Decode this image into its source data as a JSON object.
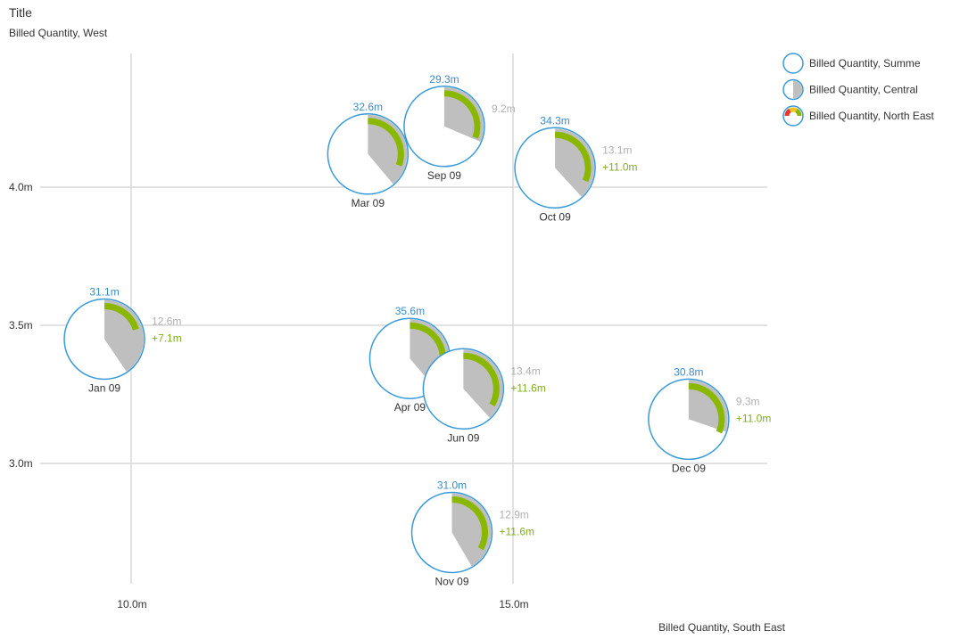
{
  "chart_data": {
    "type": "scatter",
    "title": "Title",
    "subtitle": "Billed Quantity, West",
    "xlabel": "Billed Quantity, South East",
    "ylabel": "Billed Quantity, West",
    "xlim": [
      8.7,
      18.4
    ],
    "ylim": [
      2.55,
      4.5
    ],
    "x_ticks": [
      {
        "value": 10,
        "label": "10.0m"
      },
      {
        "value": 15,
        "label": "15.0m"
      }
    ],
    "y_ticks": [
      {
        "value": 3.0,
        "label": "3.0m"
      },
      {
        "value": 3.5,
        "label": "3.5m"
      },
      {
        "value": 4.0,
        "label": "4.0m"
      }
    ],
    "grid": true,
    "legend_position": "top-right",
    "legend": [
      {
        "label": "Billed Quantity, Summe",
        "icon": "circle-outline-icon"
      },
      {
        "label": "Billed Quantity, Central",
        "icon": "grey-half-circle-icon"
      },
      {
        "label": "Billed Quantity, North East",
        "icon": "red-yellow-green-gauge-icon"
      }
    ],
    "colors": {
      "summe": "#3a9ad9",
      "central": "#bfbfbf",
      "north_east": "#8ab800",
      "summe_label": "#3a8cc8",
      "central_label": "#b0b0b0",
      "ne_label": "#7fae1c"
    },
    "points": [
      {
        "category": "Jan 09",
        "x": 9.65,
        "y": 3.45,
        "summe": 31.1,
        "summe_label": "31.1m",
        "central": 12.6,
        "central_label": "12.6m",
        "north_east": 7.1,
        "ne_label": "+7.1m"
      },
      {
        "category": "Mar 09",
        "x": 13.1,
        "y": 4.12,
        "summe": 32.6,
        "summe_label": "32.6m",
        "central": null,
        "central_label": "",
        "north_east": null,
        "ne_label": ""
      },
      {
        "category": "Sep 09",
        "x": 14.1,
        "y": 4.22,
        "summe": 29.3,
        "summe_label": "29.3m",
        "central": 9.2,
        "central_label": "9.2m",
        "north_east": null,
        "ne_label": ""
      },
      {
        "category": "Oct 09",
        "x": 15.55,
        "y": 4.07,
        "summe": 34.3,
        "summe_label": "34.3m",
        "central": 13.1,
        "central_label": "13.1m",
        "north_east": 11.0,
        "ne_label": "+11.0m"
      },
      {
        "category": "Apr 09",
        "x": 13.65,
        "y": 3.38,
        "summe": 35.6,
        "summe_label": "35.6m",
        "central": null,
        "central_label": "",
        "north_east": null,
        "ne_label": ""
      },
      {
        "category": "Jun 09",
        "x": 14.35,
        "y": 3.27,
        "summe": null,
        "summe_label": "",
        "central": 13.4,
        "central_label": "13.4m",
        "north_east": 11.6,
        "ne_label": "+11.6m"
      },
      {
        "category": "Nov 09",
        "x": 14.2,
        "y": 2.75,
        "summe": 31.0,
        "summe_label": "31.0m",
        "central": 12.9,
        "central_label": "12.9m",
        "north_east": 11.6,
        "ne_label": "+11.6m"
      },
      {
        "category": "Dec 09",
        "x": 17.3,
        "y": 3.16,
        "summe": 30.8,
        "summe_label": "30.8m",
        "central": 9.3,
        "central_label": "9.3m",
        "north_east": 11.0,
        "ne_label": "+11.0m"
      }
    ]
  }
}
